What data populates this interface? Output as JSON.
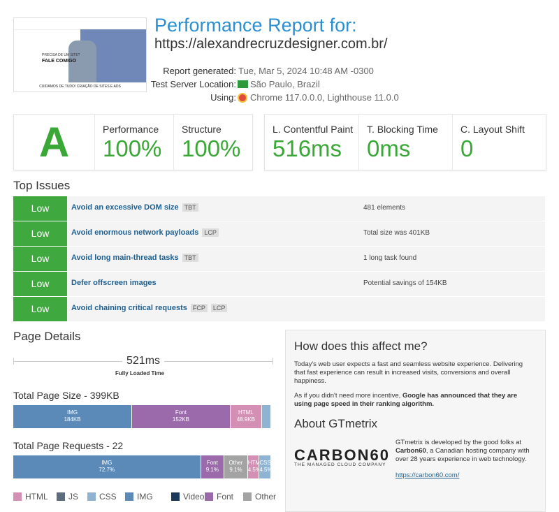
{
  "header": {
    "title": "Performance Report for:",
    "url": "https://alexandrecruzdesigner.com.br/",
    "details": [
      {
        "label": "Report generated:",
        "value": "Tue, Mar 5, 2024 10:48 AM -0300"
      },
      {
        "label": "Test Server Location:",
        "value": "São Paulo, Brazil"
      },
      {
        "label": "Using:",
        "value": "Chrome 117.0.0.0, Lighthouse 11.0.0"
      }
    ]
  },
  "thumbnail": {
    "headline": "PRECISA DE UM SITE?",
    "cta": "FALE COMIGO",
    "footer": "CUIDAMOS DE TUDO! CRIAÇÃO DE SITES E ADS"
  },
  "grade": "A",
  "scores": [
    {
      "label": "Performance",
      "value": "100%"
    },
    {
      "label": "Structure",
      "value": "100%"
    }
  ],
  "vitals": [
    {
      "label": "L. Contentful Paint",
      "value": "516ms"
    },
    {
      "label": "T. Blocking Time",
      "value": "0ms"
    },
    {
      "label": "C. Layout Shift",
      "value": "0"
    }
  ],
  "issues": {
    "title": "Top Issues",
    "items": [
      {
        "severity": "Low",
        "title": "Avoid an excessive DOM size",
        "tags": [
          "TBT"
        ],
        "detail": "481 elements"
      },
      {
        "severity": "Low",
        "title": "Avoid enormous network payloads",
        "tags": [
          "LCP"
        ],
        "detail": "Total size was 401KB"
      },
      {
        "severity": "Low",
        "title": "Avoid long main-thread tasks",
        "tags": [
          "TBT"
        ],
        "detail": "1 long task found"
      },
      {
        "severity": "Low",
        "title": "Defer offscreen images",
        "tags": [],
        "detail": "Potential savings of 154KB"
      },
      {
        "severity": "Low",
        "title": "Avoid chaining critical requests",
        "tags": [
          "FCP",
          "LCP"
        ],
        "detail": null
      }
    ]
  },
  "page_details": {
    "title": "Page Details",
    "fully_loaded": "521ms",
    "fully_loaded_label": "Fully Loaded Time",
    "size_chart": {
      "title": "Total Page Size - 399KB",
      "segments": [
        {
          "name": "IMG",
          "value": 184,
          "label": "184KB",
          "color": "#5b8ab8"
        },
        {
          "name": "Font",
          "value": 152,
          "label": "152KB",
          "color": "#9b6aab"
        },
        {
          "name": "HTML",
          "value": 48.9,
          "label": "48.9KB",
          "color": "#d48fb5"
        },
        {
          "name": null,
          "value": 14.1,
          "label": null,
          "color": "#8fb3d3"
        }
      ]
    },
    "requests_chart": {
      "title": "Total Page Requests - 22",
      "segments": [
        {
          "name": "IMG",
          "value": 72.7,
          "label": "72.7%",
          "color": "#5b8ab8"
        },
        {
          "name": "Font",
          "value": 9.1,
          "label": "9.1%",
          "color": "#9b6aab"
        },
        {
          "name": "Other",
          "value": 9.1,
          "label": "9.1%",
          "color": "#a3a3a3"
        },
        {
          "name": "HTML",
          "value": 4.5,
          "label": "4.5%",
          "color": "#d48fb5"
        },
        {
          "name": "CSS",
          "value": 4.5,
          "label": "4.5%",
          "color": "#8fb3d3"
        }
      ]
    },
    "legend": [
      {
        "name": "HTML",
        "color": "#d48fb5"
      },
      {
        "name": "JS",
        "color": "#5d6d7e"
      },
      {
        "name": "CSS",
        "color": "#8fb3d3"
      },
      {
        "name": "IMG",
        "color": "#5b8ab8"
      },
      {
        "name": "Video",
        "color": "#1b3a5c"
      },
      {
        "name": "Font",
        "color": "#9b6aab"
      },
      {
        "name": "Other",
        "color": "#a3a3a3"
      }
    ]
  },
  "info": {
    "title": "How does this affect me?",
    "p1": "Today's web user expects a fast and seamless website experience. Delivering that fast experience can result in increased visits, conversions and overall happiness.",
    "p2_start": "As if you didn't need more incentive, ",
    "p2_bold": "Google has announced that they are using page speed in their ranking algorithm.",
    "about_title": "About GTmetrix",
    "logo": "CARBON60",
    "logo_tagline": "THE MANAGED CLOUD COMPANY",
    "about_start": "GTmetrix is developed by the good folks at ",
    "about_bold": "Carbon60",
    "about_end": ", a Canadian hosting company with over 28 years experience in web technology.",
    "link": "https://carbon60.com/"
  }
}
